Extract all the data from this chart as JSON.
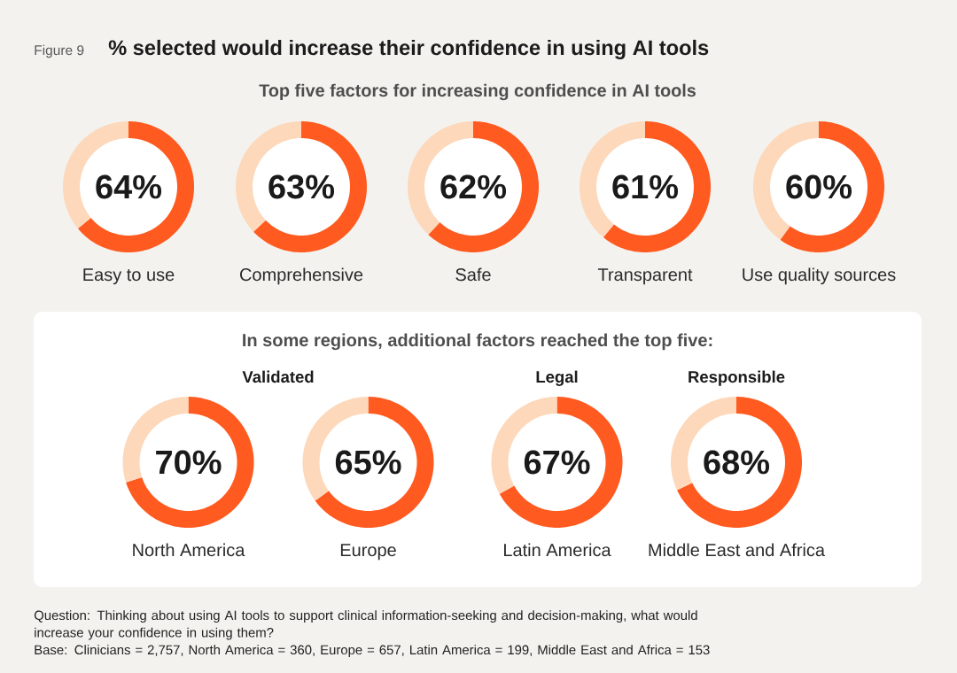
{
  "chart_data": [
    {
      "type": "other",
      "title": "% selected would increase their confidence in using AI tools",
      "subtitle": "Top five factors for increasing confidence in AI tools",
      "annotations": [
        "Figure 9",
        "Question: Thinking about using AI tools to support clinical information-seeking and decision-making, what would increase your confidence in using them?",
        "Base: Clinicians = 2,757, North America = 360, Europe = 657, Latin America = 199, Middle East and Africa = 153"
      ]
    },
    {
      "type": "donut",
      "categories": [
        "Easy to use",
        null
      ],
      "values": [
        64,
        36
      ],
      "colors": [
        "#ff5a1f",
        "#fdd8ba"
      ],
      "value_labels": [
        "64%",
        null
      ]
    },
    {
      "type": "donut",
      "categories": [
        "Comprehensive",
        null
      ],
      "values": [
        63,
        37
      ],
      "colors": [
        "#ff5a1f",
        "#fdd8ba"
      ],
      "value_labels": [
        "63%",
        null
      ]
    },
    {
      "type": "donut",
      "categories": [
        "Safe",
        null
      ],
      "values": [
        62,
        38
      ],
      "colors": [
        "#ff5a1f",
        "#fdd8ba"
      ],
      "value_labels": [
        "62%",
        null
      ]
    },
    {
      "type": "donut",
      "categories": [
        "Transparent",
        null
      ],
      "values": [
        61,
        39
      ],
      "colors": [
        "#ff5a1f",
        "#fdd8ba"
      ],
      "value_labels": [
        "61%",
        null
      ]
    },
    {
      "type": "donut",
      "categories": [
        "Use quality sources",
        null
      ],
      "values": [
        60,
        40
      ],
      "colors": [
        "#ff5a1f",
        "#fdd8ba"
      ],
      "value_labels": [
        "60%",
        null
      ]
    },
    {
      "type": "other",
      "title": "In some regions, additional factors reached the top five:"
    },
    {
      "type": "donut",
      "title": "Validated",
      "categories": [
        "North America",
        null
      ],
      "values": [
        70,
        30
      ],
      "colors": [
        "#ff5a1f",
        "#fdd8ba"
      ],
      "value_labels": [
        "70%",
        null
      ]
    },
    {
      "type": "donut",
      "categories": [
        "Europe",
        null
      ],
      "values": [
        65,
        35
      ],
      "colors": [
        "#ff5a1f",
        "#fdd8ba"
      ],
      "value_labels": [
        "65%",
        null
      ]
    },
    {
      "type": "donut",
      "title": "Legal",
      "categories": [
        "Latin America",
        null
      ],
      "values": [
        67,
        33
      ],
      "colors": [
        "#ff5a1f",
        "#fdd8ba"
      ],
      "value_labels": [
        "67%",
        null
      ]
    },
    {
      "type": "donut",
      "title": "Responsible",
      "categories": [
        "Middle East and Africa",
        null
      ],
      "values": [
        68,
        32
      ],
      "colors": [
        "#ff5a1f",
        "#fdd8ba"
      ],
      "value_labels": [
        "68%",
        null
      ]
    }
  ]
}
